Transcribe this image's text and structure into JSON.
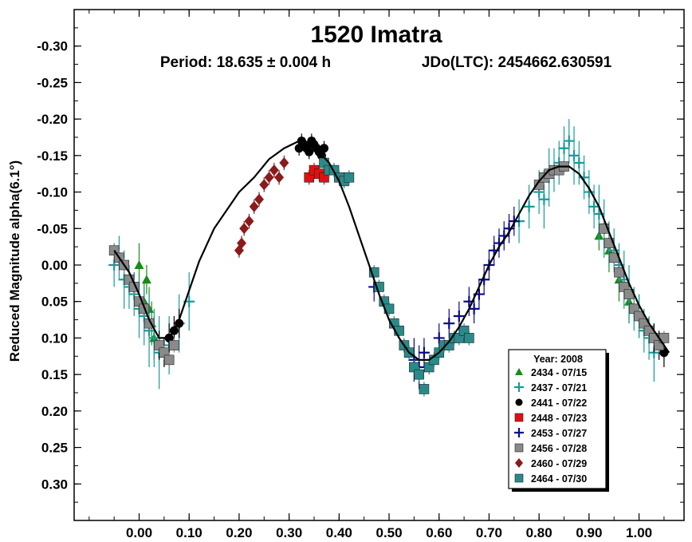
{
  "chart_data": {
    "type": "scatter",
    "title": "1520 Imatra",
    "subtitle_period": "Period: 18.635 ± 0.004 h",
    "subtitle_epoch": "JDo(LTC): 2454662.630591",
    "ylabel": "Reduced Magnitude alpha(6.1°)",
    "xlabel": "",
    "xlim": [
      -0.13,
      1.09
    ],
    "ylim": [
      0.35,
      -0.35
    ],
    "y_inverted": true,
    "grid": false,
    "x_ticks": [
      0.0,
      0.1,
      0.2,
      0.3,
      0.4,
      0.5,
      0.6,
      0.7,
      0.8,
      0.9,
      1.0
    ],
    "x_tick_labels": [
      "0.00",
      "0.10",
      "0.20",
      "0.30",
      "0.40",
      "0.50",
      "0.60",
      "0.70",
      "0.80",
      "0.90",
      "1.00"
    ],
    "y_ticks": [
      -0.3,
      -0.25,
      -0.2,
      -0.15,
      -0.1,
      -0.05,
      0.0,
      0.05,
      0.1,
      0.15,
      0.2,
      0.25,
      0.3
    ],
    "y_tick_labels": [
      "-0.30",
      "-0.25",
      "-0.20",
      "-0.15",
      "-0.10",
      "-0.05",
      "0.00",
      "0.05",
      "0.10",
      "0.15",
      "0.20",
      "0.25",
      "0.30"
    ],
    "legend": {
      "title": "Year: 2008",
      "placement": "bottom-right",
      "entries": [
        {
          "label": "2434 - 07/15",
          "marker": "triangle",
          "color": "#1a8a1a"
        },
        {
          "label": "2437 - 07/21",
          "marker": "plus",
          "color": "#1a9a9a"
        },
        {
          "label": "2441 - 07/22",
          "marker": "circle",
          "color": "#000000"
        },
        {
          "label": "2448 - 07/23",
          "marker": "square",
          "color": "#e01010"
        },
        {
          "label": "2453 - 07/27",
          "marker": "plus",
          "color": "#0a0a8a"
        },
        {
          "label": "2456 - 07/28",
          "marker": "square",
          "color": "#8a8a8a"
        },
        {
          "label": "2460 - 07/29",
          "marker": "diamond",
          "color": "#8b1a1a"
        },
        {
          "label": "2464 - 07/30",
          "marker": "square",
          "color": "#2a8a8a"
        }
      ]
    },
    "fit_curve": {
      "x": [
        -0.05,
        -0.02,
        0.0,
        0.02,
        0.04,
        0.06,
        0.08,
        0.1,
        0.12,
        0.15,
        0.18,
        0.2,
        0.23,
        0.26,
        0.29,
        0.32,
        0.34,
        0.36,
        0.38,
        0.4,
        0.42,
        0.44,
        0.46,
        0.48,
        0.5,
        0.52,
        0.54,
        0.56,
        0.58,
        0.6,
        0.62,
        0.64,
        0.66,
        0.68,
        0.7,
        0.72,
        0.74,
        0.76,
        0.78,
        0.8,
        0.82,
        0.84,
        0.86,
        0.88,
        0.9,
        0.92,
        0.94,
        0.96,
        0.98,
        1.0,
        1.02,
        1.04,
        1.06
      ],
      "y": [
        -0.02,
        0.01,
        0.04,
        0.075,
        0.1,
        0.1,
        0.075,
        0.035,
        -0.005,
        -0.05,
        -0.08,
        -0.1,
        -0.12,
        -0.145,
        -0.16,
        -0.17,
        -0.165,
        -0.155,
        -0.14,
        -0.115,
        -0.08,
        -0.04,
        0.0,
        0.04,
        0.075,
        0.1,
        0.12,
        0.13,
        0.13,
        0.12,
        0.105,
        0.085,
        0.06,
        0.03,
        0.0,
        -0.025,
        -0.045,
        -0.07,
        -0.095,
        -0.115,
        -0.13,
        -0.135,
        -0.135,
        -0.125,
        -0.105,
        -0.08,
        -0.045,
        -0.01,
        0.025,
        0.055,
        0.08,
        0.1,
        0.12
      ]
    },
    "series": [
      {
        "name": "2434 - 07/15",
        "marker": "triangle",
        "color": "#1a8a1a",
        "x": [
          -0.02,
          -0.01,
          0.0,
          0.01,
          0.015,
          0.02,
          0.025,
          0.03,
          0.92,
          0.94,
          0.96,
          0.98,
          1.0
        ],
        "y": [
          0.02,
          0.03,
          0.0,
          0.05,
          0.02,
          0.06,
          0.08,
          0.1,
          -0.04,
          -0.02,
          0.02,
          0.05,
          0.07
        ],
        "err": [
          0.02,
          0.02,
          0.03,
          0.03,
          0.02,
          0.03,
          0.03,
          0.03,
          0.02,
          0.03,
          0.03,
          0.03,
          0.03
        ]
      },
      {
        "name": "2437 - 07/21",
        "marker": "plus",
        "color": "#1a9a9a",
        "x": [
          -0.05,
          -0.04,
          -0.03,
          -0.02,
          -0.01,
          0.0,
          0.01,
          0.02,
          0.03,
          0.04,
          0.06,
          0.08,
          0.1,
          0.76,
          0.78,
          0.8,
          0.81,
          0.82,
          0.83,
          0.84,
          0.85,
          0.86,
          0.87,
          0.88,
          0.89,
          0.9,
          0.91,
          0.92,
          0.93,
          0.94,
          0.95,
          0.96,
          0.97,
          0.98,
          0.99,
          1.0,
          1.01,
          1.02,
          1.03
        ],
        "y": [
          0.0,
          -0.01,
          0.02,
          0.03,
          0.04,
          0.06,
          0.07,
          0.09,
          0.1,
          0.12,
          0.11,
          0.08,
          0.05,
          -0.06,
          -0.08,
          -0.1,
          -0.09,
          -0.12,
          -0.13,
          -0.14,
          -0.16,
          -0.17,
          -0.15,
          -0.14,
          -0.12,
          -0.1,
          -0.08,
          -0.07,
          -0.05,
          -0.03,
          -0.02,
          0.0,
          0.02,
          0.04,
          0.06,
          0.07,
          0.09,
          0.1,
          0.12
        ],
        "err": [
          0.03,
          0.03,
          0.04,
          0.03,
          0.03,
          0.04,
          0.04,
          0.05,
          0.04,
          0.05,
          0.04,
          0.04,
          0.04,
          0.03,
          0.03,
          0.03,
          0.04,
          0.04,
          0.03,
          0.03,
          0.03,
          0.03,
          0.04,
          0.03,
          0.03,
          0.03,
          0.03,
          0.04,
          0.04,
          0.03,
          0.03,
          0.03,
          0.04,
          0.04,
          0.03,
          0.03,
          0.03,
          0.03,
          0.04
        ]
      },
      {
        "name": "2441 - 07/22",
        "marker": "circle",
        "color": "#000000",
        "x": [
          0.04,
          0.05,
          0.06,
          0.07,
          0.08,
          0.32,
          0.325,
          0.33,
          0.335,
          0.34,
          0.345,
          0.35,
          0.355,
          0.36,
          0.365,
          0.37,
          1.03,
          1.04,
          1.05
        ],
        "y": [
          0.11,
          0.12,
          0.1,
          0.09,
          0.08,
          -0.16,
          -0.17,
          -0.165,
          -0.16,
          -0.155,
          -0.17,
          -0.165,
          -0.16,
          -0.155,
          -0.15,
          -0.16,
          0.1,
          0.11,
          0.12
        ],
        "err": [
          0.02,
          0.02,
          0.02,
          0.02,
          0.02,
          0.01,
          0.01,
          0.01,
          0.01,
          0.01,
          0.01,
          0.01,
          0.01,
          0.01,
          0.01,
          0.01,
          0.02,
          0.02,
          0.02
        ]
      },
      {
        "name": "2448 - 07/23",
        "marker": "square",
        "color": "#e01010",
        "x": [
          0.34,
          0.35,
          0.36,
          0.37
        ],
        "y": [
          -0.12,
          -0.13,
          -0.125,
          -0.12
        ],
        "err": [
          0.01,
          0.01,
          0.01,
          0.01
        ]
      },
      {
        "name": "2453 - 07/27",
        "marker": "plus",
        "color": "#0a0a8a",
        "x": [
          0.47,
          0.55,
          0.56,
          0.57,
          0.6,
          0.62,
          0.64,
          0.66,
          0.67,
          0.68,
          0.69,
          0.7,
          0.71,
          0.72,
          0.73,
          0.74,
          0.75
        ],
        "y": [
          0.03,
          0.13,
          0.14,
          0.12,
          0.1,
          0.08,
          0.07,
          0.05,
          0.06,
          0.04,
          0.02,
          0.0,
          -0.02,
          -0.03,
          -0.04,
          -0.05,
          -0.06
        ],
        "err": [
          0.02,
          0.03,
          0.03,
          0.02,
          0.02,
          0.02,
          0.02,
          0.02,
          0.02,
          0.02,
          0.02,
          0.02,
          0.02,
          0.02,
          0.02,
          0.02,
          0.02
        ]
      },
      {
        "name": "2456 - 07/28",
        "marker": "square",
        "color": "#8a8a8a",
        "x": [
          -0.05,
          -0.04,
          -0.03,
          -0.02,
          -0.01,
          0.0,
          0.01,
          0.02,
          0.04,
          0.05,
          0.06,
          0.07,
          0.8,
          0.81,
          0.82,
          0.83,
          0.84,
          0.85,
          0.93,
          0.94,
          0.95,
          0.96,
          0.97,
          0.98,
          0.99,
          1.0,
          1.01,
          1.02,
          1.03,
          1.04,
          1.05
        ],
        "y": [
          -0.02,
          -0.01,
          0.0,
          0.02,
          0.03,
          0.05,
          0.06,
          0.08,
          0.11,
          0.12,
          0.13,
          0.11,
          -0.11,
          -0.12,
          -0.125,
          -0.13,
          -0.13,
          -0.135,
          -0.05,
          -0.03,
          -0.01,
          0.01,
          0.03,
          0.04,
          0.06,
          0.07,
          0.08,
          0.09,
          0.1,
          0.11,
          0.1
        ],
        "err": [
          0.01,
          0.01,
          0.01,
          0.01,
          0.01,
          0.01,
          0.01,
          0.01,
          0.01,
          0.01,
          0.01,
          0.01,
          0.01,
          0.01,
          0.01,
          0.01,
          0.01,
          0.01,
          0.01,
          0.01,
          0.01,
          0.01,
          0.01,
          0.01,
          0.01,
          0.01,
          0.01,
          0.01,
          0.01,
          0.01,
          0.01
        ]
      },
      {
        "name": "2460 - 07/29",
        "marker": "diamond",
        "color": "#8b1a1a",
        "x": [
          0.2,
          0.205,
          0.21,
          0.22,
          0.23,
          0.24,
          0.25,
          0.26,
          0.27,
          0.28,
          0.29
        ],
        "y": [
          -0.02,
          -0.03,
          -0.05,
          -0.06,
          -0.08,
          -0.09,
          -0.11,
          -0.12,
          -0.13,
          -0.12,
          -0.14
        ],
        "err": [
          0.01,
          0.01,
          0.01,
          0.01,
          0.01,
          0.01,
          0.01,
          0.01,
          0.01,
          0.01,
          0.01
        ]
      },
      {
        "name": "2464 - 07/30",
        "marker": "square",
        "color": "#2a8a8a",
        "x": [
          0.37,
          0.38,
          0.39,
          0.4,
          0.41,
          0.42,
          0.47,
          0.48,
          0.49,
          0.5,
          0.51,
          0.52,
          0.53,
          0.54,
          0.55,
          0.56,
          0.57,
          0.58,
          0.59,
          0.6,
          0.61,
          0.62,
          0.63,
          0.64,
          0.65,
          0.66
        ],
        "y": [
          -0.14,
          -0.13,
          -0.13,
          -0.12,
          -0.115,
          -0.12,
          0.01,
          0.03,
          0.05,
          0.06,
          0.08,
          0.09,
          0.11,
          0.12,
          0.14,
          0.15,
          0.17,
          0.14,
          0.13,
          0.12,
          0.11,
          0.11,
          0.1,
          0.1,
          0.09,
          0.1
        ],
        "err": [
          0.01,
          0.01,
          0.01,
          0.01,
          0.01,
          0.01,
          0.01,
          0.01,
          0.01,
          0.01,
          0.01,
          0.01,
          0.01,
          0.01,
          0.01,
          0.01,
          0.01,
          0.01,
          0.01,
          0.01,
          0.01,
          0.01,
          0.01,
          0.01,
          0.01,
          0.01
        ]
      }
    ]
  }
}
